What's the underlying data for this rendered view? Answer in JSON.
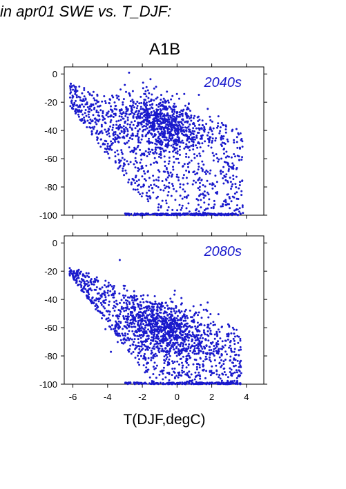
{
  "header": {
    "title": "in apr01 SWE vs. T_DJF:"
  },
  "scenario": {
    "title": "A1B"
  },
  "colors": {
    "points": "#1a1acc",
    "panel_label": "#1a1acc",
    "axes": "#000000"
  },
  "chart_data": [
    {
      "type": "scatter",
      "panel_label": "2040s",
      "xlabel": "",
      "ylabel": "",
      "xlim": [
        -6.5,
        5
      ],
      "ylim": [
        -100,
        5
      ],
      "yticks": [
        0,
        -20,
        -40,
        -60,
        -80,
        -100
      ],
      "xticks": [
        -6,
        -4,
        -2,
        0,
        2,
        4
      ],
      "show_x_tick_labels": false,
      "grid": false,
      "point_cloud": {
        "x_range": [
          -6.5,
          3.8
        ],
        "y_range": [
          -100,
          2
        ],
        "dense_center": [
          -0.8,
          -35
        ],
        "floor_value": -100,
        "floor_x_range": [
          -3,
          3.7
        ],
        "approx_point_count": 1900
      }
    },
    {
      "type": "scatter",
      "panel_label": "2080s",
      "xlabel": "T(DJF,degC)",
      "ylabel": "",
      "xlim": [
        -6.5,
        5
      ],
      "ylim": [
        -100,
        5
      ],
      "yticks": [
        0,
        -20,
        -40,
        -60,
        -80,
        -100
      ],
      "xticks": [
        -6,
        -4,
        -2,
        0,
        2,
        4
      ],
      "x_tick_labels": [
        "-6",
        "-4",
        "-2",
        "0",
        "2",
        "4"
      ],
      "show_x_tick_labels": true,
      "grid": false,
      "point_cloud": {
        "x_range": [
          -6.5,
          3.7
        ],
        "y_range": [
          -100,
          -9
        ],
        "dense_center": [
          -0.8,
          -60
        ],
        "floor_value": -100,
        "floor_x_range": [
          -3,
          3.7
        ],
        "approx_point_count": 1900
      }
    }
  ]
}
